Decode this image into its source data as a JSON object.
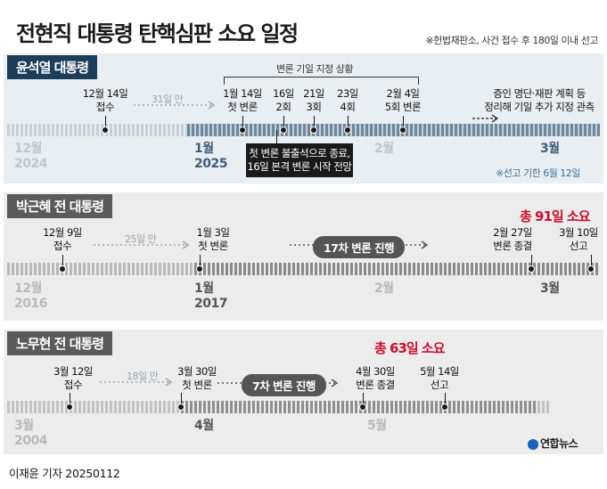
{
  "title": "전현직 대통령 탄핵심판 소요 일정",
  "subtitle": "※헌법재판소, 사건 접수 후 180일 이내 선고",
  "panels": {
    "yoon": {
      "label": "윤석열 대통령",
      "bracket_label": "변론 기일 지정 상황",
      "gap_label": "31일 만",
      "events": [
        {
          "l1": "12월 14일",
          "l2": "접수"
        },
        {
          "l1": "1월 14일",
          "l2": "첫 변론"
        },
        {
          "l1": "16일",
          "l2": "2회"
        },
        {
          "l1": "21일",
          "l2": "3회"
        },
        {
          "l1": "23일",
          "l2": "4회"
        },
        {
          "l1": "2월 4일",
          "l2": "5회 변론"
        },
        {
          "l1": "증인 명단·재판 계획 등",
          "l2": "정리해 기일 추가 지정 관측"
        }
      ],
      "callout": {
        "l1": "첫 변론 불출석으로 종료,",
        "l2": "16일 본격 변론 시작 전망"
      },
      "deadline": "※선고 기한 6월 12일",
      "months": [
        {
          "m": "12월",
          "y": "2024"
        },
        {
          "m": "1월",
          "y": "2025"
        },
        {
          "m": "2월",
          "y": ""
        },
        {
          "m": "3월",
          "y": ""
        }
      ]
    },
    "park": {
      "label": "박근혜 전 대통령",
      "total": "총 91일 소요",
      "gap_label": "25일 만",
      "pill": "17차 변론 진행",
      "events": [
        {
          "l1": "12월 9일",
          "l2": "접수"
        },
        {
          "l1": "1월 3일",
          "l2": "첫 변론"
        },
        {
          "l1": "2월 27일",
          "l2": "변론 종결"
        },
        {
          "l1": "3월 10일",
          "l2": "선고"
        }
      ],
      "months": [
        {
          "m": "12월",
          "y": "2016"
        },
        {
          "m": "1월",
          "y": "2017"
        },
        {
          "m": "2월",
          "y": ""
        },
        {
          "m": "3월",
          "y": ""
        }
      ]
    },
    "roh": {
      "label": "노무현 전 대통령",
      "total": "총 63일 소요",
      "gap_label": "18일 만",
      "pill": "7차 변론 진행",
      "events": [
        {
          "l1": "3월 12일",
          "l2": "접수"
        },
        {
          "l1": "3월 30일",
          "l2": "첫 변론"
        },
        {
          "l1": "4월 30일",
          "l2": "변론 종결"
        },
        {
          "l1": "5월 14일",
          "l2": "선고"
        }
      ],
      "months": [
        {
          "m": "3월",
          "y": "2004"
        },
        {
          "m": "4월",
          "y": ""
        },
        {
          "m": "5월",
          "y": ""
        }
      ]
    }
  },
  "footer": "이재윤 기자  20250112",
  "logo": "연합뉴스",
  "colors": {
    "navy": "#1d3e5a",
    "red": "#c8102e",
    "callout": "#1a1a1a"
  }
}
